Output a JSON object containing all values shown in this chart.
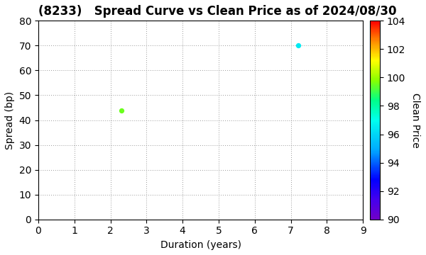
{
  "title": "(8233)   Spread Curve vs Clean Price as of 2024/08/30",
  "xlabel": "Duration (years)",
  "ylabel": "Spread (bp)",
  "colorbar_label": "Clean Price",
  "xlim": [
    0,
    9
  ],
  "ylim": [
    0,
    80
  ],
  "xticks": [
    0,
    1,
    2,
    3,
    4,
    5,
    6,
    7,
    8,
    9
  ],
  "yticks": [
    0,
    10,
    20,
    30,
    40,
    50,
    60,
    70,
    80
  ],
  "colorbar_min": 90,
  "colorbar_max": 104,
  "colorbar_ticks": [
    90,
    92,
    94,
    96,
    98,
    100,
    102,
    104
  ],
  "points": [
    {
      "duration": 2.3,
      "spread": 44,
      "clean_price": 99.5
    },
    {
      "duration": 7.2,
      "spread": 70,
      "clean_price": 96.5
    }
  ],
  "point_size": 18,
  "background_color": "#ffffff",
  "grid_color": "#999999",
  "title_fontsize": 12,
  "axis_fontsize": 10,
  "cmap_colors": [
    [
      0.0,
      "#7000c8"
    ],
    [
      0.1,
      "#4400ee"
    ],
    [
      0.2,
      "#0000ff"
    ],
    [
      0.35,
      "#00aaff"
    ],
    [
      0.5,
      "#00ffee"
    ],
    [
      0.6,
      "#00ff88"
    ],
    [
      0.7,
      "#88ff00"
    ],
    [
      0.8,
      "#ffff00"
    ],
    [
      0.9,
      "#ff8800"
    ],
    [
      1.0,
      "#ff0000"
    ]
  ]
}
